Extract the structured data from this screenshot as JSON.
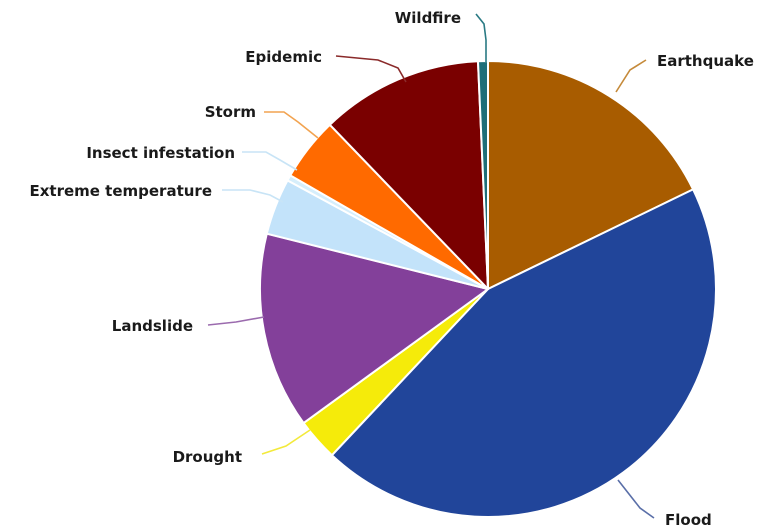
{
  "chart_data": {
    "type": "pie",
    "title": "",
    "start_angle_deg": 0,
    "direction": "clockwise",
    "slices": [
      {
        "label": "Earthquake",
        "value": 17.8,
        "color": "#A85C00"
      },
      {
        "label": "Flood",
        "value": 44.2,
        "color": "#21459A"
      },
      {
        "label": "Drought",
        "value": 3.0,
        "color": "#F5EB0A"
      },
      {
        "label": "Landslide",
        "value": 13.9,
        "color": "#83409A"
      },
      {
        "label": "Extreme temperature",
        "value": 4.0,
        "color": "#C3E3FA"
      },
      {
        "label": "Insect infestation",
        "value": 0.4,
        "color": "#D6EEFB"
      },
      {
        "label": "Storm",
        "value": 4.5,
        "color": "#FF6A00"
      },
      {
        "label": "Epidemic",
        "value": 11.5,
        "color": "#7A0000"
      },
      {
        "label": "Wildfire",
        "value": 0.7,
        "color": "#1E6E78"
      }
    ],
    "leader_colors": {
      "Earthquake": "#C58A3A",
      "Flood": "#5A6FA8",
      "Drought": "#F3EA3B",
      "Landslide": "#9B6BAE",
      "Extreme temperature": "#C8E4F6",
      "Insect infestation": "#C8E4F6",
      "Storm": "#F2A350",
      "Epidemic": "#8A2A2A",
      "Wildfire": "#2A7A84"
    }
  }
}
